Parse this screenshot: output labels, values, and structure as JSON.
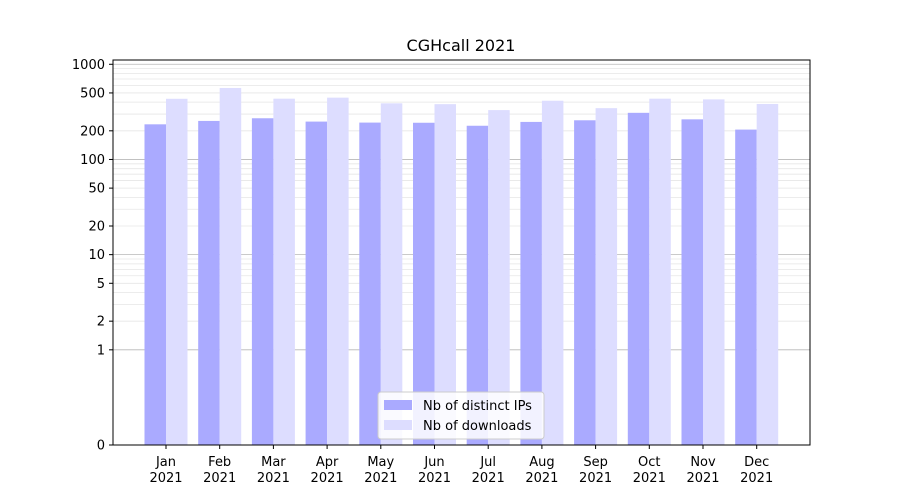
{
  "chart_data": {
    "type": "bar",
    "title": "CGHcall 2021",
    "xlabel": "",
    "ylabel": "",
    "yscale": "symlog",
    "yticks": [
      0,
      1,
      2,
      5,
      10,
      20,
      50,
      100,
      200,
      500,
      1000
    ],
    "ylim": [
      0,
      1000
    ],
    "categories": [
      "Jan\n2021",
      "Feb\n2021",
      "Mar\n2021",
      "Apr\n2021",
      "May\n2021",
      "Jun\n2021",
      "Jul\n2021",
      "Aug\n2021",
      "Sep\n2021",
      "Oct\n2021",
      "Nov\n2021",
      "Dec\n2021"
    ],
    "series": [
      {
        "name": "Nb of distinct IPs",
        "color": "#aaaaff",
        "values": [
          234,
          254,
          271,
          250,
          244,
          243,
          226,
          248,
          258,
          309,
          264,
          206
        ]
      },
      {
        "name": "Nb of downloads",
        "color": "#ddddff",
        "values": [
          434,
          564,
          435,
          446,
          389,
          381,
          330,
          414,
          346,
          435,
          428,
          383
        ]
      }
    ],
    "grid": true,
    "legend": "lower-center"
  }
}
